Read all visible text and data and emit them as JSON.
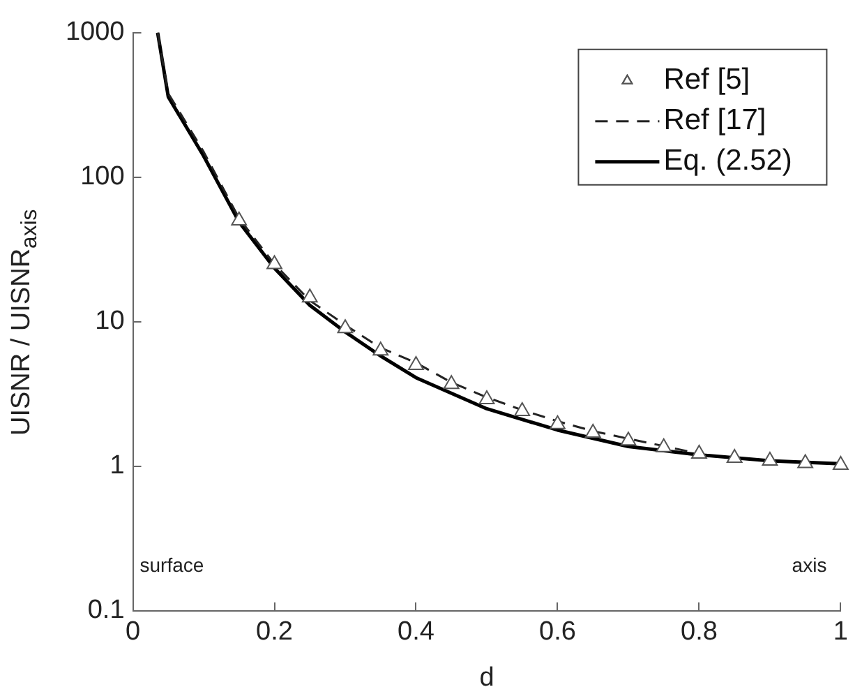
{
  "chart_data": {
    "type": "line",
    "xlabel": "d",
    "ylabel": "UISNR / UISNR$_{axis}$",
    "xlim": [
      0,
      1
    ],
    "xticks": [
      0,
      0.2,
      0.4,
      0.6,
      0.8,
      1
    ],
    "ylim": [
      0.1,
      1000
    ],
    "yticks": [
      0.1,
      1,
      10,
      100,
      1000
    ],
    "log": "y",
    "grid": false,
    "legend": "top right",
    "annotations": [
      "surface",
      "axis"
    ],
    "series": [
      {
        "name": "Ref [5]",
        "type": "scatter",
        "marker": "triangle",
        "color": "#555555",
        "x": [
          0.15,
          0.2,
          0.25,
          0.3,
          0.35,
          0.4,
          0.45,
          0.5,
          0.55,
          0.6,
          0.65,
          0.7,
          0.75,
          0.8,
          0.85,
          0.9,
          0.95,
          1.0
        ],
        "values": [
          50,
          25,
          14.7,
          9,
          6.3,
          5,
          3.7,
          2.9,
          2.4,
          1.95,
          1.7,
          1.5,
          1.35,
          1.22,
          1.14,
          1.09,
          1.05,
          1.02
        ]
      },
      {
        "name": "Ref [17]",
        "type": "line",
        "line_style": "dashed",
        "marker": "none",
        "color": "#222222",
        "x": [
          0.035,
          0.05,
          0.1,
          0.15,
          0.2,
          0.25,
          0.3,
          0.35,
          0.4,
          0.45,
          0.5,
          0.55,
          0.6,
          0.65,
          0.7,
          0.75,
          0.8
        ],
        "values": [
          1000,
          380,
          150,
          52,
          25,
          14,
          9.5,
          6.6,
          5.2,
          3.8,
          3.0,
          2.45,
          2.05,
          1.75,
          1.55,
          1.38,
          1.22
        ]
      },
      {
        "name": "Eq. (2.52)",
        "type": "line",
        "line_style": "solid",
        "marker": "none",
        "color": "#000000",
        "x": [
          0.035,
          0.05,
          0.1,
          0.15,
          0.2,
          0.25,
          0.3,
          0.35,
          0.4,
          0.5,
          0.6,
          0.7,
          0.8,
          0.9,
          1.0
        ],
        "values": [
          1000,
          360,
          140,
          49,
          23.5,
          13,
          8.5,
          5.8,
          4.1,
          2.5,
          1.78,
          1.37,
          1.2,
          1.09,
          1.04
        ]
      }
    ]
  }
}
